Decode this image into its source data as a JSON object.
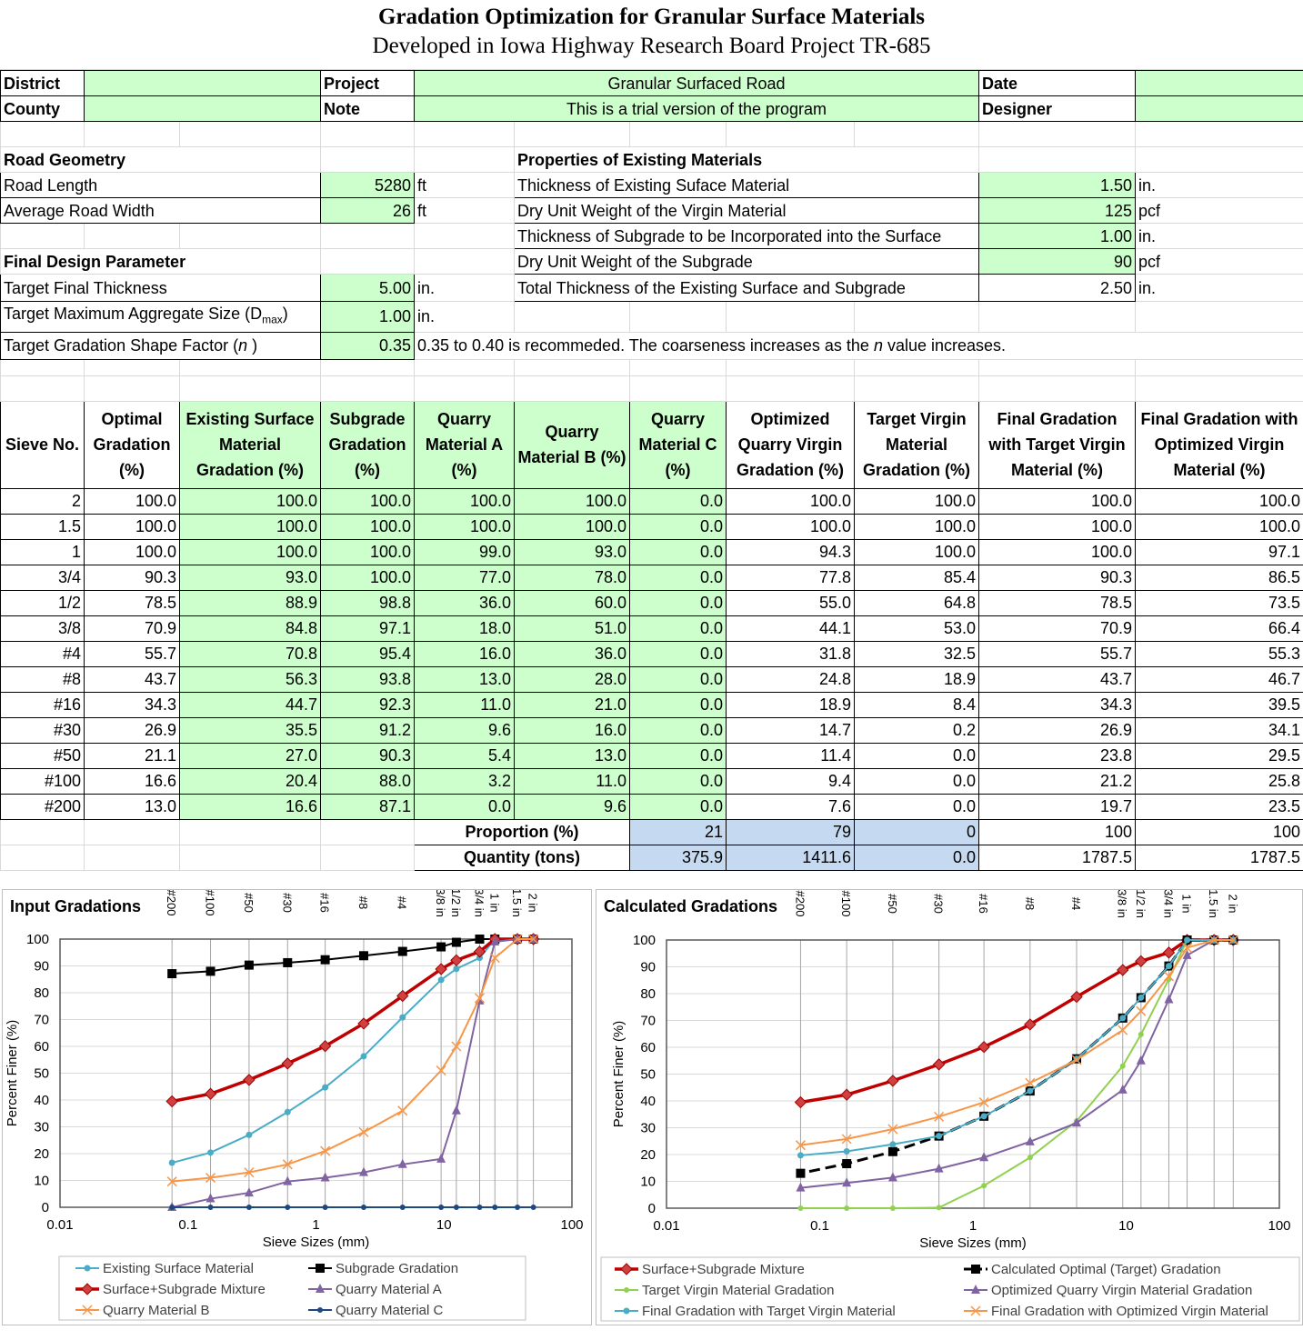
{
  "title": "Gradation Optimization for Granular Surface Materials",
  "subtitle": "Developed in Iowa Highway Research Board Project TR-685",
  "header": {
    "district_label": "District",
    "district_value": "",
    "county_label": "County",
    "county_value": "",
    "project_label": "Project",
    "project_value": "Granular Surfaced Road",
    "note_label": "Note",
    "note_value": "This is a trial version of the program",
    "date_label": "Date",
    "date_value": "",
    "designer_label": "Designer",
    "designer_value": ""
  },
  "road_geometry": {
    "title": "Road Geometry",
    "length_label": "Road Length",
    "length_value": "5280",
    "length_unit": "ft",
    "width_label": "Average Road Width",
    "width_value": "26",
    "width_unit": "ft"
  },
  "existing": {
    "title": "Properties of Existing Materials",
    "rows": [
      {
        "label": "Thickness of Existing Suface Material",
        "value": "1.50",
        "unit": "in."
      },
      {
        "label": "Dry Unit Weight of the Virgin Material",
        "value": "125",
        "unit": "pcf"
      },
      {
        "label": "Thickness of Subgrade to be Incorporated into the Surface",
        "value": "1.00",
        "unit": "in."
      },
      {
        "label": "Dry Unit Weight of the Subgrade",
        "value": "90",
        "unit": "pcf"
      },
      {
        "label": "Total Thickness of the Existing Surface and Subgrade",
        "value": "2.50",
        "unit": "in."
      }
    ]
  },
  "design": {
    "title": "Final Design Parameter",
    "thick_label": "Target Final Thickness",
    "thick_value": "5.00",
    "thick_unit": "in.",
    "dmax_label": "Target Maximum Aggregate Size (D",
    "dmax_sub": "max",
    "dmax_close": ")",
    "dmax_value": "1.00",
    "dmax_unit": "in.",
    "n_label": "Target Gradation Shape Factor (",
    "n_italic": "n",
    "n_close": " )",
    "n_value": "0.35",
    "n_note_a": "0.35 to 0.40 is recommeded. The coarseness increases as the ",
    "n_note_b": " value increases."
  },
  "table": {
    "headers": [
      "Sieve No.",
      "Optimal Gradation (%)",
      "Existing Surface Material Gradation (%)",
      "Subgrade Gradation (%)",
      "Quarry Material A (%)",
      "Quarry Material B (%)",
      "Quarry Material C (%)",
      "Optimized Quarry Virgin Gradation (%)",
      "Target Virgin Material Gradation (%)",
      "Final Gradation with Target Virgin Material (%)",
      "Final Gradation with Optimized Virgin Material (%)"
    ],
    "rows": [
      [
        "2",
        "100.0",
        "100.0",
        "100.0",
        "100.0",
        "100.0",
        "0.0",
        "100.0",
        "100.0",
        "100.0",
        "100.0"
      ],
      [
        "1.5",
        "100.0",
        "100.0",
        "100.0",
        "100.0",
        "100.0",
        "0.0",
        "100.0",
        "100.0",
        "100.0",
        "100.0"
      ],
      [
        "1",
        "100.0",
        "100.0",
        "100.0",
        "99.0",
        "93.0",
        "0.0",
        "94.3",
        "100.0",
        "100.0",
        "97.1"
      ],
      [
        "3/4",
        "90.3",
        "93.0",
        "100.0",
        "77.0",
        "78.0",
        "0.0",
        "77.8",
        "85.4",
        "90.3",
        "86.5"
      ],
      [
        "1/2",
        "78.5",
        "88.9",
        "98.8",
        "36.0",
        "60.0",
        "0.0",
        "55.0",
        "64.8",
        "78.5",
        "73.5"
      ],
      [
        "3/8",
        "70.9",
        "84.8",
        "97.1",
        "18.0",
        "51.0",
        "0.0",
        "44.1",
        "53.0",
        "70.9",
        "66.4"
      ],
      [
        "#4",
        "55.7",
        "70.8",
        "95.4",
        "16.0",
        "36.0",
        "0.0",
        "31.8",
        "32.5",
        "55.7",
        "55.3"
      ],
      [
        "#8",
        "43.7",
        "56.3",
        "93.8",
        "13.0",
        "28.0",
        "0.0",
        "24.8",
        "18.9",
        "43.7",
        "46.7"
      ],
      [
        "#16",
        "34.3",
        "44.7",
        "92.3",
        "11.0",
        "21.0",
        "0.0",
        "18.9",
        "8.4",
        "34.3",
        "39.5"
      ],
      [
        "#30",
        "26.9",
        "35.5",
        "91.2",
        "9.6",
        "16.0",
        "0.0",
        "14.7",
        "0.2",
        "26.9",
        "34.1"
      ],
      [
        "#50",
        "21.1",
        "27.0",
        "90.3",
        "5.4",
        "13.0",
        "0.0",
        "11.4",
        "0.0",
        "23.8",
        "29.5"
      ],
      [
        "#100",
        "16.6",
        "20.4",
        "88.0",
        "3.2",
        "11.0",
        "0.0",
        "9.4",
        "0.0",
        "21.2",
        "25.8"
      ],
      [
        "#200",
        "13.0",
        "16.6",
        "87.1",
        "0.0",
        "9.6",
        "0.0",
        "7.6",
        "0.0",
        "19.7",
        "23.5"
      ]
    ],
    "proportion_label": "Proportion (%)",
    "proportion": [
      "21",
      "79",
      "0",
      "100",
      "100"
    ],
    "quantity_label": "Quantity (tons)",
    "quantity": [
      "375.9",
      "1411.6",
      "0.0",
      "1787.5",
      "1787.5"
    ]
  },
  "chart_data": [
    {
      "type": "line",
      "title": "Input Gradations",
      "xlabel": "Sieve Sizes (mm)",
      "ylabel": "Percent Finer (%)",
      "xscale": "log",
      "xlim": [
        0.01,
        100
      ],
      "ylim": [
        0,
        100
      ],
      "xticks": [
        "0.01",
        "0.1",
        "1",
        "10",
        "100"
      ],
      "yticks": [
        0,
        10,
        20,
        30,
        40,
        50,
        60,
        70,
        80,
        90,
        100
      ],
      "grid": true,
      "legend": "bottom",
      "sieve_labels": [
        "2 in",
        "1.5 in",
        "1 in",
        "3/4 in",
        "1/2 in",
        "3/8 in",
        "#4",
        "#8",
        "#16",
        "#30",
        "#50",
        "#100",
        "#200"
      ],
      "x": [
        50,
        37.5,
        25,
        19,
        12.5,
        9.5,
        4.75,
        2.36,
        1.18,
        0.6,
        0.3,
        0.15,
        0.075
      ],
      "series": [
        {
          "name": "Existing Surface Material",
          "color": "#4bacc6",
          "marker": "circle",
          "values": [
            100,
            100,
            100,
            93,
            88.9,
            84.8,
            70.8,
            56.3,
            44.7,
            35.5,
            27,
            20.4,
            16.6
          ]
        },
        {
          "name": "Subgrade Gradation",
          "color": "#000000",
          "marker": "square",
          "values": [
            100,
            100,
            100,
            100,
            98.8,
            97.1,
            95.4,
            93.8,
            92.3,
            91.2,
            90.3,
            88,
            87.1
          ]
        },
        {
          "name": "Surface+Subgrade Mixture",
          "color": "#c00000",
          "marker": "diamond",
          "values": [
            100,
            100,
            100,
            95.3,
            92.1,
            88.8,
            78.8,
            68.5,
            60.1,
            53.6,
            47.5,
            42.3,
            39.5
          ]
        },
        {
          "name": "Quarry Material A",
          "color": "#8064a2",
          "marker": "triangle",
          "values": [
            100,
            100,
            99,
            77,
            36,
            18,
            16,
            13,
            11,
            9.6,
            5.4,
            3.2,
            0
          ]
        },
        {
          "name": "Quarry Material B",
          "color": "#f79646",
          "marker": "x",
          "values": [
            100,
            100,
            93,
            78,
            60,
            51,
            36,
            28,
            21,
            16,
            13,
            11,
            9.6
          ]
        },
        {
          "name": "Quarry Material C",
          "color": "#1f497d",
          "marker": "dot",
          "values": [
            0,
            0,
            0,
            0,
            0,
            0,
            0,
            0,
            0,
            0,
            0,
            0,
            0
          ]
        }
      ]
    },
    {
      "type": "line",
      "title": "Calculated Gradations",
      "xlabel": "Sieve Sizes (mm)",
      "ylabel": "Percent Finer (%)",
      "xscale": "log",
      "xlim": [
        0.01,
        100
      ],
      "ylim": [
        0,
        100
      ],
      "xticks": [
        "0.01",
        "0.1",
        "1",
        "10",
        "100"
      ],
      "yticks": [
        0,
        10,
        20,
        30,
        40,
        50,
        60,
        70,
        80,
        90,
        100
      ],
      "grid": true,
      "legend": "bottom",
      "sieve_labels": [
        "2 in",
        "1.5 in",
        "1 in",
        "3/4 in",
        "1/2 in",
        "3/8 in",
        "#4",
        "#8",
        "#16",
        "#30",
        "#50",
        "#100",
        "#200"
      ],
      "x": [
        50,
        37.5,
        25,
        19,
        12.5,
        9.5,
        4.75,
        2.36,
        1.18,
        0.6,
        0.3,
        0.15,
        0.075
      ],
      "series": [
        {
          "name": "Surface+Subgrade Mixture",
          "color": "#c00000",
          "marker": "diamond",
          "values": [
            100,
            100,
            100,
            95.3,
            92.1,
            88.8,
            78.8,
            68.5,
            60.1,
            53.6,
            47.5,
            42.3,
            39.5
          ]
        },
        {
          "name": "Calculated Optimal (Target) Gradation",
          "color": "#000000",
          "marker": "square",
          "dashed": true,
          "values": [
            100,
            100,
            100,
            90.3,
            78.5,
            70.9,
            55.7,
            43.7,
            34.3,
            26.9,
            21.1,
            16.6,
            13
          ]
        },
        {
          "name": "Target Virgin Material Gradation",
          "color": "#92d050",
          "marker": "dot",
          "values": [
            100,
            100,
            100,
            85.4,
            64.8,
            53,
            32.5,
            18.9,
            8.4,
            0.2,
            0,
            0,
            0
          ]
        },
        {
          "name": "Optimized Quarry Virgin Material Gradation",
          "color": "#8064a2",
          "marker": "triangle",
          "values": [
            100,
            100,
            94.3,
            77.8,
            55,
            44.1,
            31.8,
            24.8,
            18.9,
            14.7,
            11.4,
            9.4,
            7.6
          ]
        },
        {
          "name": "Final Gradation with Target Virgin Material",
          "color": "#4bacc6",
          "marker": "circle",
          "values": [
            100,
            100,
            100,
            90.3,
            78.5,
            70.9,
            55.7,
            43.7,
            34.3,
            26.9,
            23.8,
            21.2,
            19.7
          ]
        },
        {
          "name": "Final Gradation with Optimized Virgin Material",
          "color": "#f79646",
          "marker": "x",
          "values": [
            100,
            100,
            97.1,
            86.5,
            73.5,
            66.4,
            55.3,
            46.7,
            39.5,
            34.1,
            29.5,
            25.8,
            23.5
          ]
        }
      ]
    }
  ]
}
